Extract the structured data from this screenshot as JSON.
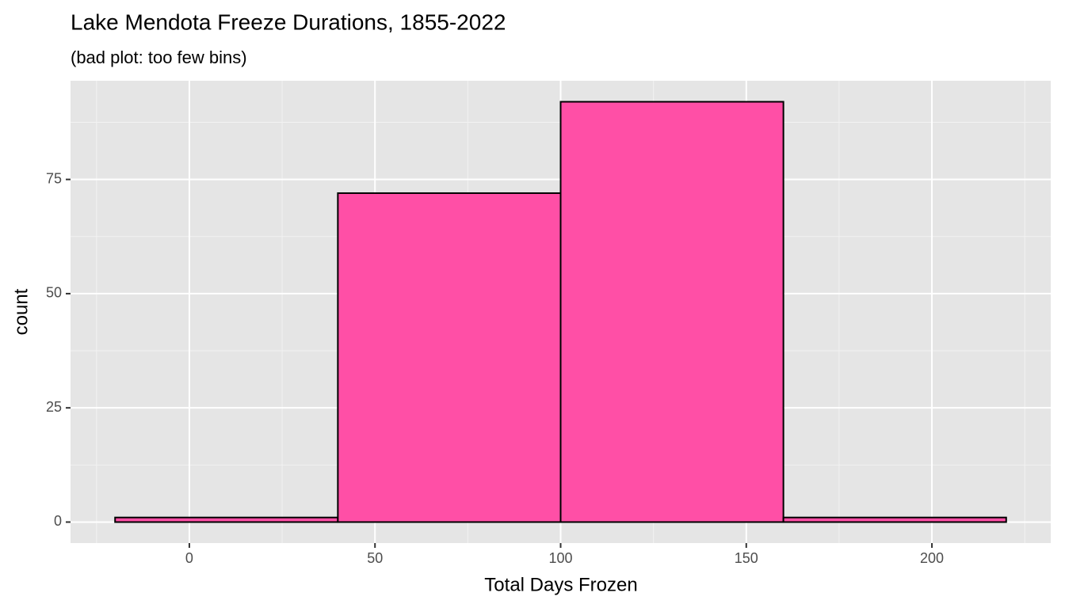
{
  "chart_data": {
    "type": "histogram",
    "title": "Lake Mendota Freeze Durations, 1855-2022",
    "subtitle": "(bad plot: too few bins)",
    "x_label": "Total Days Frozen",
    "y_label": "count",
    "bins": [
      -20,
      40,
      100,
      160,
      220
    ],
    "values": [
      1,
      72,
      92,
      1
    ],
    "color": "#ff4fa6",
    "edge_color": "#000000",
    "xlim": [
      -32,
      232
    ],
    "ylim": [
      -4.6,
      96.6
    ],
    "xticks": [
      0,
      50,
      100,
      150,
      200
    ],
    "yticks": [
      0,
      25,
      50,
      75
    ],
    "x_minor_ticks": [
      -25,
      25,
      75,
      125,
      175,
      225
    ],
    "y_minor_ticks": [
      12.5,
      37.5,
      62.5,
      87.5
    ],
    "grid": true
  }
}
